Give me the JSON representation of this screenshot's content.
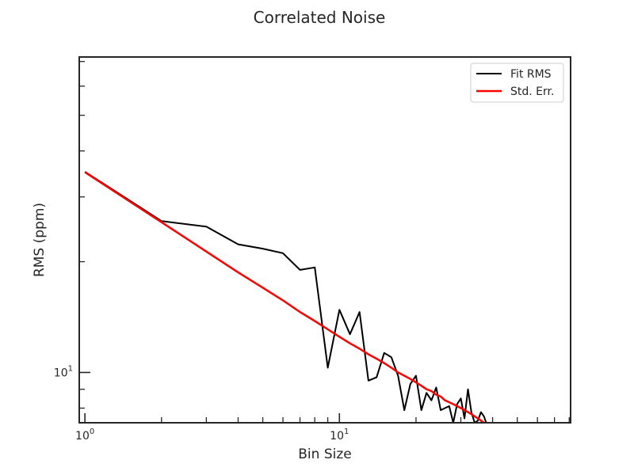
{
  "chart_data": {
    "type": "line",
    "title": "Correlated Noise",
    "xlabel": "Bin Size",
    "ylabel": "RMS (ppm)",
    "x_scale": "log",
    "y_scale": "log",
    "xlim": [
      0.95,
      81
    ],
    "ylim": [
      7.3,
      72
    ],
    "grid": false,
    "legend_position": "top-right",
    "x_major_ticks": [
      {
        "value": 1,
        "base": "10",
        "exp": "0"
      },
      {
        "value": 10,
        "base": "10",
        "exp": "1"
      }
    ],
    "y_major_ticks": [
      {
        "value": 10,
        "base": "10",
        "exp": "1"
      }
    ],
    "x_minor_ticks": [
      2,
      3,
      4,
      5,
      6,
      7,
      8,
      9,
      20,
      30,
      40,
      50,
      60,
      70,
      80
    ],
    "y_minor_ticks": [
      8,
      9,
      20,
      30,
      40,
      50,
      60,
      70
    ],
    "series": [
      {
        "name": "Fit RMS",
        "color": "#000000",
        "x": [
          1,
          2,
          3,
          4,
          5,
          6,
          7,
          8,
          9,
          10,
          11,
          12,
          13,
          14,
          15,
          16,
          17,
          18,
          19,
          20,
          21,
          22,
          23,
          24,
          25,
          26,
          27,
          28,
          29,
          30,
          31,
          32,
          33,
          34,
          35,
          36,
          37,
          38,
          39,
          40
        ],
        "y": [
          35.1,
          25.8,
          24.9,
          22.3,
          21.7,
          21.1,
          19.0,
          19.3,
          10.3,
          14.8,
          12.7,
          14.6,
          9.5,
          9.7,
          11.3,
          11.0,
          9.8,
          7.9,
          9.3,
          9.8,
          7.9,
          8.8,
          8.4,
          9.1,
          7.9,
          8.0,
          8.1,
          7.3,
          8.2,
          8.5,
          7.5,
          9.0,
          7.8,
          7.3,
          7.4,
          7.8,
          7.6,
          7.2,
          7.1,
          7.0
        ]
      },
      {
        "name": "Std. Err.",
        "color": "#ff0000",
        "x": [
          1,
          2,
          3,
          4,
          5,
          6,
          7,
          8,
          9,
          10,
          11,
          12,
          13,
          14,
          15,
          16,
          17,
          18,
          19,
          20,
          21,
          22,
          23,
          24,
          25,
          26,
          27,
          28,
          29,
          30,
          31,
          32,
          33,
          34,
          35,
          36,
          37,
          38,
          39,
          40
        ],
        "y": [
          35.0,
          25.6,
          21.3,
          18.7,
          17.0,
          15.7,
          14.6,
          13.8,
          13.1,
          12.5,
          12.0,
          11.6,
          11.2,
          10.9,
          10.6,
          10.3,
          10.0,
          9.8,
          9.6,
          9.4,
          9.2,
          9.0,
          8.9,
          8.7,
          8.6,
          8.4,
          8.3,
          8.2,
          8.1,
          8.0,
          7.9,
          7.8,
          7.7,
          7.6,
          7.5,
          7.4,
          7.3,
          7.3,
          7.2,
          7.1
        ]
      }
    ]
  }
}
